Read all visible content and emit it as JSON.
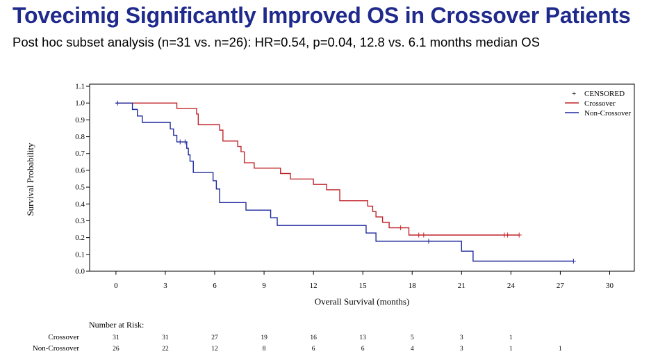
{
  "header": {
    "title": "Tovecimig Significantly Improved OS in Crossover Patients",
    "subtitle": "Post hoc subset analysis (n=31 vs. n=26): HR=0.54, p=0.04, 12.8 vs. 6.1 months median OS"
  },
  "chart_data": {
    "type": "line",
    "subtype": "kaplan-meier-step",
    "xlabel": "Overall Survival (months)",
    "ylabel": "Survival Probability",
    "xlim": [
      -1.6,
      31.5
    ],
    "ylim": [
      0.0,
      1.1
    ],
    "xticks": [
      0,
      3,
      6,
      9,
      12,
      15,
      18,
      21,
      24,
      27,
      30
    ],
    "xtick_labels": [
      "0",
      "3",
      "6",
      "9",
      "12",
      "15",
      "18",
      "21",
      "24",
      "27",
      "30"
    ],
    "yticks": [
      0.0,
      0.1,
      0.2,
      0.3,
      0.4,
      0.5,
      0.6,
      0.7,
      0.8,
      0.9,
      1.0,
      1.1
    ],
    "ytick_labels": [
      "0.0",
      "0.1",
      "0.2",
      "0.3",
      "0.4",
      "0.5",
      "0.6",
      "0.7",
      "0.8",
      "0.9",
      "1.0",
      "1.1"
    ],
    "legend": {
      "position": "top-right",
      "censored_symbol": "+",
      "censored_label": "CENSORED",
      "entries": [
        "Crossover",
        "Non-Crossover"
      ]
    },
    "series": [
      {
        "name": "Crossover",
        "color": "#c0242b",
        "steps": [
          [
            0,
            1.0
          ],
          [
            3.7,
            0.968
          ],
          [
            4.9,
            0.935
          ],
          [
            5.0,
            0.871
          ],
          [
            6.3,
            0.839
          ],
          [
            6.5,
            0.774
          ],
          [
            7.4,
            0.742
          ],
          [
            7.6,
            0.71
          ],
          [
            7.8,
            0.645
          ],
          [
            8.4,
            0.613
          ],
          [
            10.0,
            0.581
          ],
          [
            10.6,
            0.548
          ],
          [
            12.0,
            0.516
          ],
          [
            12.8,
            0.484
          ],
          [
            13.6,
            0.419
          ],
          [
            15.3,
            0.387
          ],
          [
            15.6,
            0.355
          ],
          [
            15.8,
            0.323
          ],
          [
            16.2,
            0.291
          ],
          [
            16.6,
            0.258
          ],
          [
            17.8,
            0.215
          ],
          [
            24.5,
            0.215
          ]
        ],
        "censored": [
          17.3,
          18.4,
          18.7,
          23.6,
          23.8,
          24.5
        ]
      },
      {
        "name": "Non-Crossover",
        "color": "#1f2a9c",
        "steps": [
          [
            0,
            1.0
          ],
          [
            1.0,
            0.962
          ],
          [
            1.3,
            0.923
          ],
          [
            1.6,
            0.885
          ],
          [
            3.3,
            0.846
          ],
          [
            3.5,
            0.808
          ],
          [
            3.7,
            0.769
          ],
          [
            4.3,
            0.731
          ],
          [
            4.4,
            0.692
          ],
          [
            4.5,
            0.654
          ],
          [
            4.7,
            0.587
          ],
          [
            5.9,
            0.538
          ],
          [
            6.1,
            0.489
          ],
          [
            6.3,
            0.408
          ],
          [
            7.9,
            0.363
          ],
          [
            9.4,
            0.318
          ],
          [
            9.8,
            0.272
          ],
          [
            15.2,
            0.227
          ],
          [
            15.8,
            0.178
          ],
          [
            21.0,
            0.119
          ],
          [
            21.7,
            0.06
          ],
          [
            27.8,
            0.06
          ]
        ],
        "censored": [
          0.1,
          3.9,
          4.2,
          19.0,
          27.8
        ]
      }
    ],
    "number_at_risk": {
      "title": "Number at Risk:",
      "times": [
        0,
        3,
        6,
        9,
        12,
        15,
        18,
        21,
        24,
        27
      ],
      "rows": [
        {
          "label": "Crossover",
          "values": [
            "31",
            "31",
            "27",
            "19",
            "16",
            "13",
            "5",
            "3",
            "1",
            ""
          ]
        },
        {
          "label": "Non-Crossover",
          "values": [
            "26",
            "22",
            "12",
            "8",
            "6",
            "6",
            "4",
            "3",
            "1",
            "1"
          ]
        }
      ]
    }
  }
}
